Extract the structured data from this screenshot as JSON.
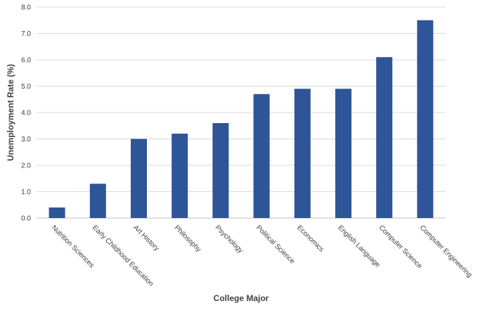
{
  "chart_data": {
    "type": "bar",
    "title": "",
    "xlabel": "College Major",
    "ylabel": "Unemployment Rate (%)",
    "ylim": [
      0,
      8
    ],
    "yticks": [
      "0.0",
      "1.0",
      "2.0",
      "3.0",
      "4.0",
      "5.0",
      "6.0",
      "7.0",
      "8.0"
    ],
    "grid": true,
    "legend": "none",
    "bar_color": "#2e5597",
    "categories": [
      "Nutrition Sciences",
      "Early Childhood Education",
      "Art History",
      "Philosophy",
      "Psychology",
      "Political Science",
      "Economics",
      "English Language",
      "Computer Science",
      "Computer Engineering"
    ],
    "values": [
      0.4,
      1.3,
      3.0,
      3.2,
      3.6,
      4.7,
      4.9,
      4.9,
      6.1,
      7.5
    ]
  }
}
